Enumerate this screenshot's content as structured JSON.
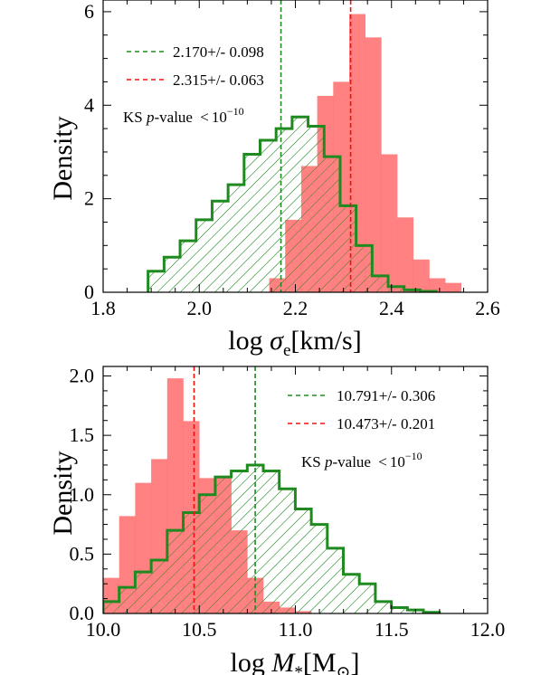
{
  "colors": {
    "red_fill": "#ff6b6b",
    "red_line": "#ee1111",
    "green": "#1f8a1f",
    "axis": "#000000"
  },
  "chart_data": [
    {
      "type": "histogram",
      "xlabel": "log σe[km/s]",
      "xlabel_parts": {
        "base": "log ",
        "sym": "σ",
        "sub": "e",
        "unit": "[km/s]"
      },
      "ylabel": "Density",
      "xlim": [
        1.8,
        2.6
      ],
      "ylim": [
        0,
        6.25
      ],
      "xticks": [
        1.8,
        2.0,
        2.2,
        2.4,
        2.6
      ],
      "xtick_labels": [
        "1.8",
        "2.0",
        "2.2",
        "2.4",
        "2.6"
      ],
      "yticks": [
        0,
        2,
        4,
        6
      ],
      "ytick_labels": [
        "0",
        "2",
        "4",
        "6"
      ],
      "legend_position": "top-left",
      "annotation": {
        "prefix": "KS ",
        "italic": "p",
        "mid": "-value ",
        "lt": "<",
        "base": "10",
        "exp": "−10"
      },
      "series": [
        {
          "name": "2.170+/- 0.098",
          "style": "green-hatched-step",
          "bin_width": 0.0333,
          "edges": [
            1.8935,
            1.9268,
            1.9601,
            1.9934,
            2.0267,
            2.06,
            2.0933,
            2.1266,
            2.1599,
            2.1932,
            2.2265,
            2.2598,
            2.2931,
            2.3264,
            2.3597,
            2.393,
            2.4263,
            2.4596,
            2.4929
          ],
          "values": [
            0.45,
            0.75,
            1.1,
            1.55,
            1.95,
            2.3,
            2.95,
            3.25,
            3.5,
            3.75,
            3.55,
            2.9,
            1.85,
            1.0,
            0.35,
            0.12,
            0.05,
            0.02
          ],
          "mean_line": 2.17
        },
        {
          "name": "2.315+/- 0.063",
          "style": "red-filled",
          "bin_width": 0.0333,
          "edges": [
            2.1455,
            2.1788,
            2.2121,
            2.2454,
            2.2787,
            2.312,
            2.3453,
            2.3786,
            2.4119,
            2.4452,
            2.4785,
            2.5118,
            2.5451
          ],
          "values": [
            0.3,
            1.55,
            2.7,
            4.2,
            4.5,
            5.95,
            5.45,
            2.95,
            1.6,
            0.7,
            0.3,
            0.2
          ],
          "mean_line": 2.315
        }
      ]
    },
    {
      "type": "histogram",
      "xlabel": "log M*[M⊙]",
      "xlabel_parts": {
        "base": "log ",
        "sym": "M",
        "sub": "*",
        "unit1": "[M",
        "unit_sub": "⊙",
        "unit2": "]"
      },
      "ylabel": "Density",
      "xlim": [
        10.0,
        12.0
      ],
      "ylim": [
        0,
        2.08
      ],
      "xticks": [
        10.0,
        10.5,
        11.0,
        11.5,
        12.0
      ],
      "xtick_labels": [
        "10.0",
        "10.5",
        "11.0",
        "11.5",
        "12.0"
      ],
      "yticks": [
        0.0,
        0.5,
        1.0,
        1.5,
        2.0
      ],
      "ytick_labels": [
        "0.0",
        "0.5",
        "1.0",
        "1.5",
        "2.0"
      ],
      "legend_position": "top-right",
      "annotation": {
        "prefix": "KS ",
        "italic": "p",
        "mid": "-value ",
        "lt": "<",
        "base": "10",
        "exp": "−10"
      },
      "series": [
        {
          "name": "10.791+/- 0.306",
          "style": "green-hatched-step",
          "bin_width": 0.0833,
          "edges": [
            10.0,
            10.0833,
            10.1666,
            10.2499,
            10.3332,
            10.4165,
            10.4998,
            10.5831,
            10.6664,
            10.7497,
            10.833,
            10.9163,
            10.9996,
            11.0829,
            11.1662,
            11.2495,
            11.3328,
            11.4161,
            11.4994,
            11.5827,
            11.666,
            11.7493
          ],
          "values": [
            0.1,
            0.22,
            0.35,
            0.45,
            0.7,
            0.85,
            1.0,
            1.15,
            1.2,
            1.25,
            1.2,
            1.05,
            0.88,
            0.75,
            0.55,
            0.33,
            0.25,
            0.1,
            0.05,
            0.03,
            0.01
          ],
          "mean_line": 10.791
        },
        {
          "name": "10.473+/- 0.201",
          "style": "red-filled",
          "bin_width": 0.0833,
          "edges": [
            10.0,
            10.0833,
            10.1666,
            10.2499,
            10.3332,
            10.4165,
            10.4998,
            10.5831,
            10.6664,
            10.7497,
            10.833,
            10.9163,
            10.9996,
            11.0829
          ],
          "values": [
            0.3,
            0.82,
            1.1,
            1.3,
            1.98,
            1.62,
            1.14,
            1.15,
            0.7,
            0.3,
            0.1,
            0.05,
            0.02
          ],
          "mean_line": 10.473
        }
      ]
    }
  ]
}
